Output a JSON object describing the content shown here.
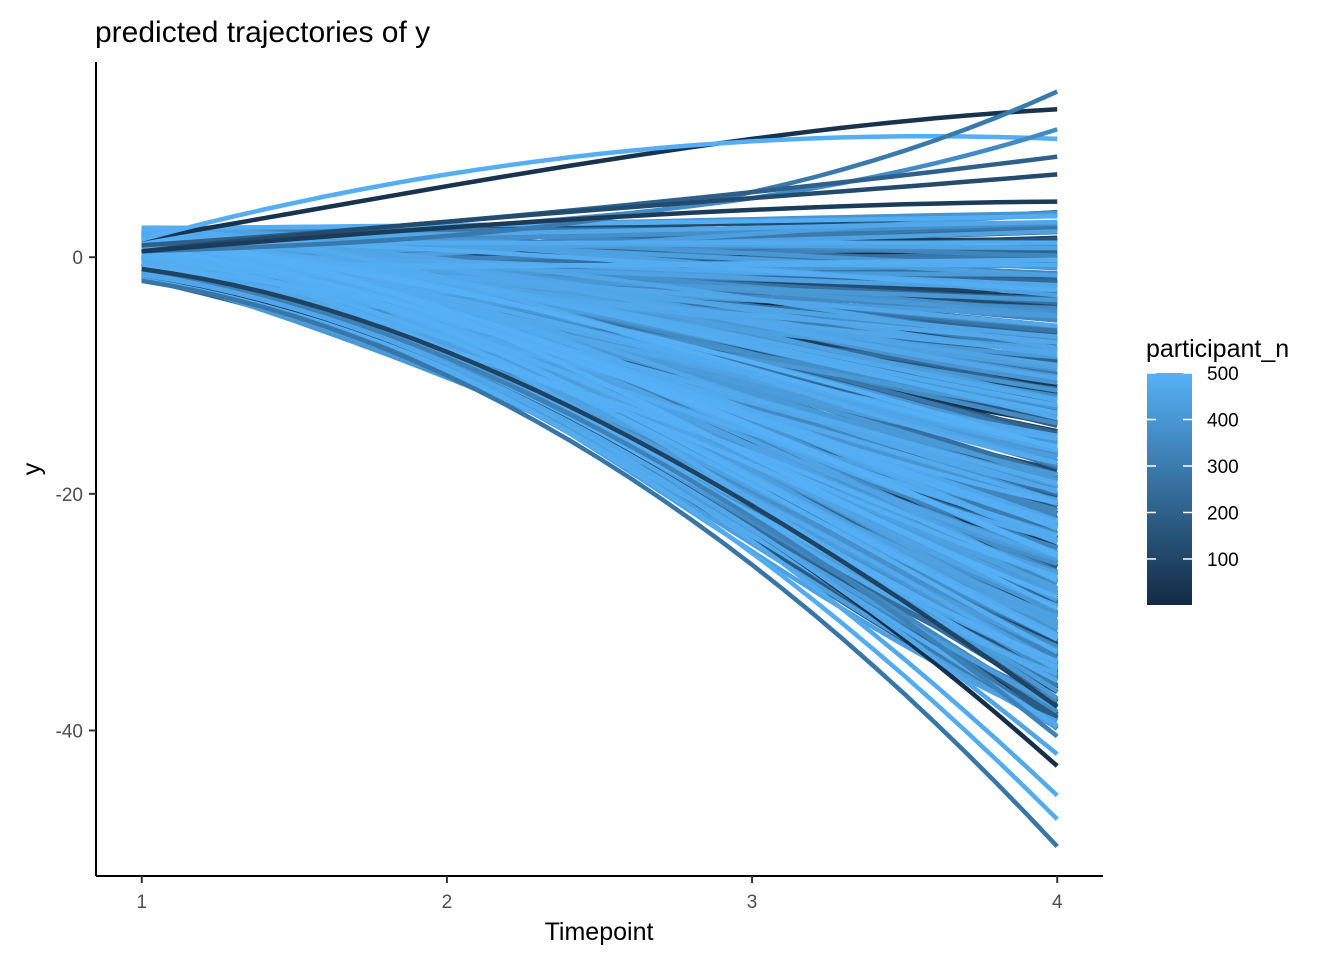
{
  "chart_data": {
    "type": "line",
    "title": "predicted trajectories of y",
    "xlabel": "Timepoint",
    "ylabel": "y",
    "x": [
      1,
      2,
      3,
      4
    ],
    "xlim": [
      0.85,
      4.15
    ],
    "ylim": [
      -52.3,
      16.5
    ],
    "x_ticks": [
      1,
      2,
      3,
      4
    ],
    "y_ticks": [
      -40,
      -20,
      0
    ],
    "grid": false,
    "legend": {
      "title": "participant_n",
      "type": "colorbar",
      "position": "right",
      "range": [
        1,
        500
      ],
      "ticks": [
        100,
        200,
        300,
        400,
        500
      ],
      "color_low": "#132B43",
      "color_high": "#56B1F7"
    },
    "series_summary": {
      "count": 500,
      "color_by": "participant_n",
      "value_at_x1_range": [
        -2,
        2.5
      ],
      "value_at_x4_range": [
        -50,
        14
      ]
    },
    "highlighted_series": [
      {
        "participant_n": 30,
        "values": [
          1.5,
          6.0,
          10.0,
          12.5
        ]
      },
      {
        "participant_n": 490,
        "values": [
          1.5,
          7.0,
          9.8,
          10.0
        ]
      },
      {
        "participant_n": 290,
        "values": [
          0.5,
          1.8,
          5.5,
          14.0
        ]
      },
      {
        "participant_n": 360,
        "values": [
          1.0,
          2.5,
          5.0,
          10.8
        ]
      },
      {
        "participant_n": 200,
        "values": [
          1.0,
          3.0,
          5.5,
          8.5
        ]
      },
      {
        "participant_n": 120,
        "values": [
          0.5,
          3.0,
          5.0,
          7.0
        ]
      },
      {
        "participant_n": 60,
        "values": [
          0.5,
          2.5,
          4.0,
          4.7
        ]
      },
      {
        "participant_n": 280,
        "values": [
          -2.0,
          -10.0,
          -26.0,
          -49.8
        ]
      },
      {
        "participant_n": 480,
        "values": [
          -1.5,
          -9.5,
          -25.0,
          -47.5
        ]
      },
      {
        "participant_n": 470,
        "values": [
          -1.5,
          -9.0,
          -24.0,
          -45.5
        ]
      },
      {
        "participant_n": 20,
        "values": [
          -1.5,
          -9.0,
          -23.0,
          -43.0
        ]
      },
      {
        "participant_n": 460,
        "values": [
          -1.5,
          -9.0,
          -23.0,
          -42.0
        ]
      },
      {
        "participant_n": 320,
        "values": [
          -1.0,
          -8.5,
          -22.0,
          -40.5
        ]
      },
      {
        "participant_n": 90,
        "values": [
          -1.0,
          -8.0,
          -21.0,
          -38.0
        ]
      }
    ]
  }
}
